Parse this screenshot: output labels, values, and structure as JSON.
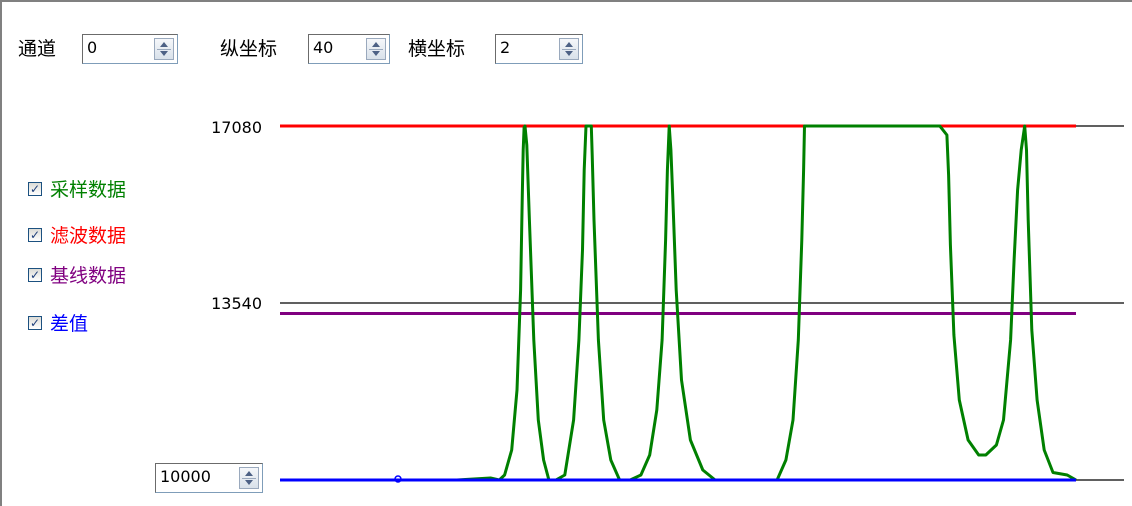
{
  "controls": {
    "channel": {
      "label": "通道",
      "value": "0"
    },
    "y_scale": {
      "label": "纵坐标",
      "value": "40"
    },
    "x_scale": {
      "label": "横坐标",
      "value": "2"
    },
    "baseline_value": "10000"
  },
  "legend": [
    {
      "label": "采样数据",
      "color": "#008000",
      "checked": true
    },
    {
      "label": "滤波数据",
      "color": "#ff0000",
      "checked": true
    },
    {
      "label": "基线数据",
      "color": "#800080",
      "checked": true
    },
    {
      "label": "差值",
      "color": "#0000ff",
      "checked": true
    }
  ],
  "chart_data": {
    "type": "line",
    "y_ticks": [
      "17080",
      "13540"
    ],
    "ylim": [
      10000,
      17080
    ],
    "grid": true,
    "series": [
      {
        "name": "采样数据",
        "color": "#008000",
        "points": [
          [
            0,
            10000
          ],
          [
            50,
            10000
          ],
          [
            100,
            10000
          ],
          [
            200,
            10000
          ],
          [
            238,
            10040
          ],
          [
            248,
            10000
          ],
          [
            254,
            10100
          ],
          [
            262,
            10600
          ],
          [
            268,
            11800
          ],
          [
            272,
            13800
          ],
          [
            274,
            15700
          ],
          [
            275,
            16600
          ],
          [
            276,
            17050
          ],
          [
            277,
            17080
          ],
          [
            277,
            17080
          ],
          [
            279,
            16700
          ],
          [
            282,
            15200
          ],
          [
            287,
            12800
          ],
          [
            292,
            11200
          ],
          [
            298,
            10400
          ],
          [
            304,
            10000
          ],
          [
            304,
            10000
          ],
          [
            312,
            10000
          ],
          [
            322,
            10100
          ],
          [
            332,
            11200
          ],
          [
            338,
            12800
          ],
          [
            342,
            14600
          ],
          [
            344,
            16200
          ],
          [
            346,
            17080
          ],
          [
            352,
            17080
          ],
          [
            353,
            16500
          ],
          [
            355,
            15200
          ],
          [
            360,
            12800
          ],
          [
            366,
            11200
          ],
          [
            374,
            10400
          ],
          [
            384,
            10000
          ],
          [
            384,
            10000
          ],
          [
            396,
            10000
          ],
          [
            408,
            10100
          ],
          [
            418,
            10500
          ],
          [
            426,
            11400
          ],
          [
            432,
            12800
          ],
          [
            436,
            14800
          ],
          [
            438,
            16200
          ],
          [
            440,
            17080
          ],
          [
            440,
            17080
          ],
          [
            442,
            16600
          ],
          [
            444,
            15700
          ],
          [
            448,
            13800
          ],
          [
            454,
            12000
          ],
          [
            464,
            10800
          ],
          [
            478,
            10200
          ],
          [
            492,
            10000
          ],
          [
            492,
            10000
          ],
          [
            520,
            10000
          ],
          [
            548,
            10000
          ],
          [
            562,
            10000
          ],
          [
            572,
            10400
          ],
          [
            580,
            11200
          ],
          [
            586,
            12800
          ],
          [
            590,
            14800
          ],
          [
            592,
            16200
          ],
          [
            593,
            17080
          ],
          [
            593,
            17080
          ],
          [
            640,
            17080
          ],
          [
            706,
            17080
          ],
          [
            746,
            17080
          ],
          [
            754,
            16900
          ],
          [
            756,
            16100
          ],
          [
            758,
            14700
          ],
          [
            762,
            12900
          ],
          [
            768,
            11600
          ],
          [
            778,
            10800
          ],
          [
            790,
            10500
          ],
          [
            798,
            10500
          ],
          [
            810,
            10700
          ],
          [
            818,
            11200
          ],
          [
            826,
            12800
          ],
          [
            830,
            14400
          ],
          [
            834,
            15800
          ],
          [
            838,
            16600
          ],
          [
            842,
            17080
          ],
          [
            842,
            17080
          ],
          [
            844,
            16600
          ],
          [
            846,
            15200
          ],
          [
            850,
            13000
          ],
          [
            856,
            11600
          ],
          [
            864,
            10600
          ],
          [
            874,
            10150
          ],
          [
            890,
            10100
          ],
          [
            900,
            10000
          ]
        ]
      },
      {
        "name": "滤波数据",
        "color": "#ff0000",
        "points": [
          [
            0,
            17080
          ],
          [
            900,
            17080
          ]
        ]
      },
      {
        "name": "基线数据",
        "color": "#800080",
        "points": [
          [
            0,
            13330
          ],
          [
            900,
            13330
          ]
        ]
      },
      {
        "name": "差值",
        "color": "#0000ff",
        "points": [
          [
            0,
            10000
          ],
          [
            900,
            10000
          ]
        ]
      }
    ]
  }
}
